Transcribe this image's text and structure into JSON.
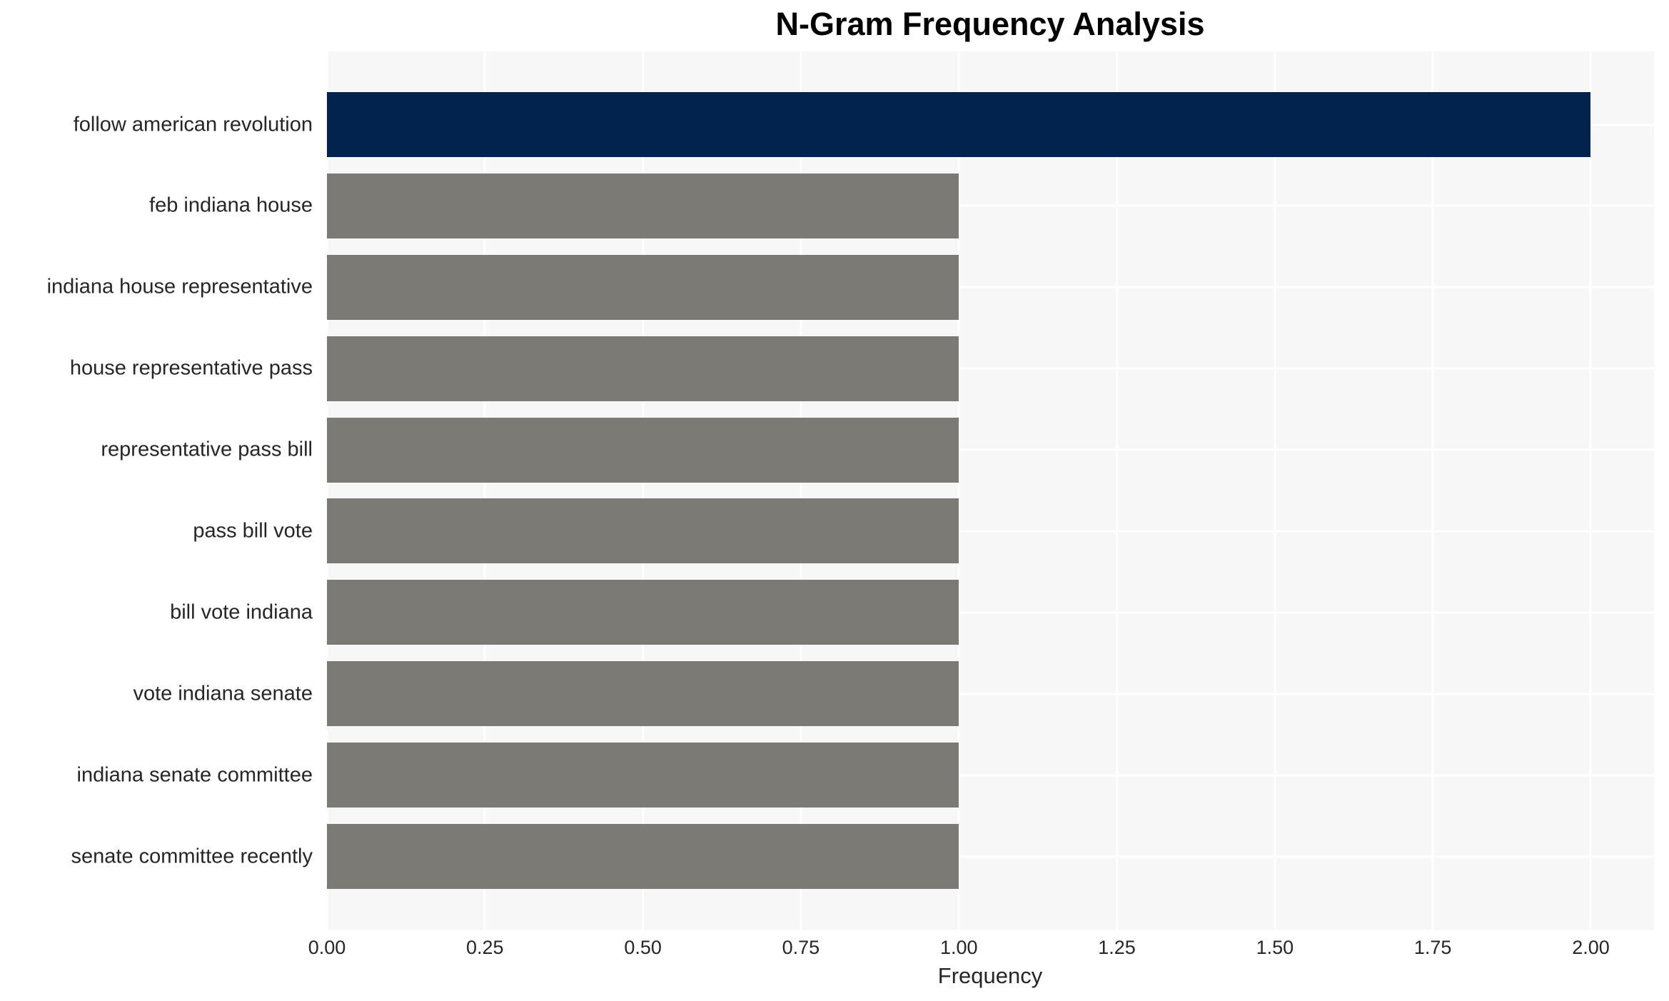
{
  "chart_data": {
    "type": "bar",
    "orientation": "horizontal",
    "title": "N-Gram Frequency Analysis",
    "xlabel": "Frequency",
    "categories": [
      "follow american revolution",
      "feb indiana house",
      "indiana house representative",
      "house representative pass",
      "representative pass bill",
      "pass bill vote",
      "bill vote indiana",
      "vote indiana senate",
      "indiana senate committee",
      "senate committee recently"
    ],
    "values": [
      2,
      1,
      1,
      1,
      1,
      1,
      1,
      1,
      1,
      1
    ],
    "xtick_labels": [
      "0.00",
      "0.25",
      "0.50",
      "0.75",
      "1.00",
      "1.25",
      "1.50",
      "1.75",
      "2.00"
    ],
    "xlim": [
      0,
      2.1
    ],
    "grid": "on",
    "legend": "none",
    "colors": {
      "highlight_bar": "#02234D",
      "default_bar": "#7B7A75",
      "plot_background": "#F7F7F7",
      "gridline": "#FFFFFF",
      "tick_text": "#262626",
      "title_text": "#000000"
    }
  }
}
